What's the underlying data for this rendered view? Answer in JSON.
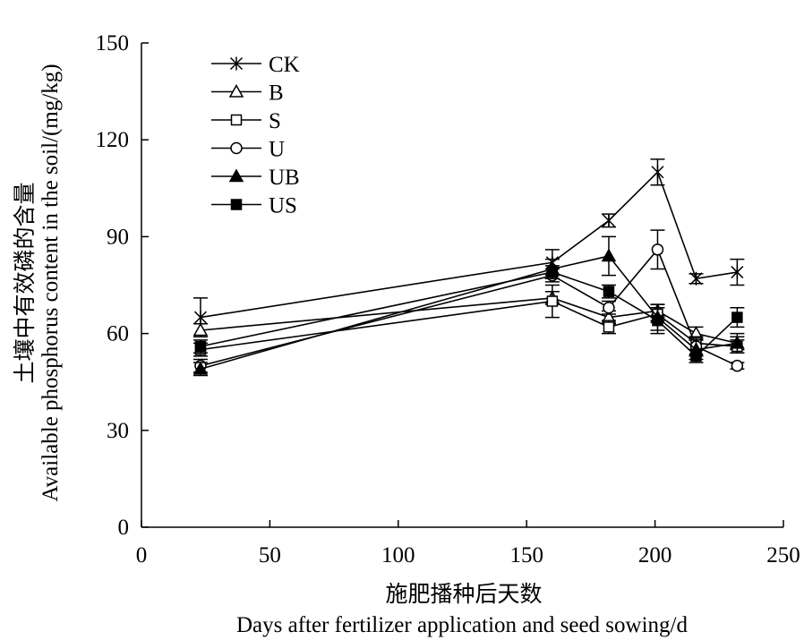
{
  "chart_data": {
    "type": "line",
    "xlabel_cn": "施肥播种后天数",
    "xlabel_en": "Days after fertilizer application and seed sowing/d",
    "ylabel_cn": "土壤中有效磷的含量",
    "ylabel_en": "Available phosphorus content in the soil/(mg/kg)",
    "xlim": [
      0,
      250
    ],
    "ylim": [
      0,
      150
    ],
    "xticks": [
      0,
      50,
      100,
      150,
      200,
      250
    ],
    "yticks": [
      0,
      30,
      60,
      90,
      120,
      150
    ],
    "x": [
      23,
      160,
      182,
      201,
      216,
      232
    ],
    "legend_position": "top-left",
    "grid": false,
    "series": [
      {
        "name": "CK",
        "marker": "asterisk",
        "values": [
          65,
          82,
          95,
          110,
          77,
          79
        ],
        "errors": [
          6,
          4,
          2,
          4,
          1.5,
          4
        ]
      },
      {
        "name": "B",
        "marker": "triangle-open",
        "values": [
          61,
          71,
          65,
          67,
          60,
          57
        ],
        "errors": [
          2,
          2,
          2,
          2,
          2,
          2
        ]
      },
      {
        "name": "S",
        "marker": "square-open",
        "values": [
          55,
          70,
          62,
          66,
          57,
          56
        ],
        "errors": [
          2,
          5,
          2,
          2,
          2,
          2
        ]
      },
      {
        "name": "U",
        "marker": "circle-open",
        "values": [
          50,
          78,
          68,
          86,
          56,
          50
        ],
        "errors": [
          2,
          2,
          2,
          6,
          3,
          1
        ]
      },
      {
        "name": "UB",
        "marker": "triangle-filled",
        "values": [
          49,
          80,
          84,
          65,
          55,
          57
        ],
        "errors": [
          2,
          3,
          6,
          4,
          3,
          3
        ]
      },
      {
        "name": "US",
        "marker": "square-filled",
        "values": [
          56,
          79,
          73,
          64,
          53,
          65
        ],
        "errors": [
          2,
          2,
          2,
          4,
          2,
          3
        ]
      }
    ]
  }
}
